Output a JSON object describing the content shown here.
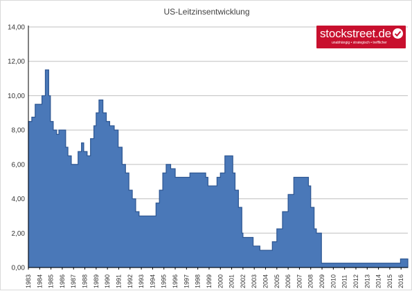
{
  "chart_data": {
    "type": "area",
    "title": "US-Leitzinsentwicklung",
    "xlabel": "",
    "ylabel": "",
    "ylim": [
      0,
      14
    ],
    "xlim": [
      1983.0,
      2016.6
    ],
    "grid": "horizontal",
    "legend": "none",
    "y_ticks": [
      "0,00",
      "2,00",
      "4,00",
      "6,00",
      "8,00",
      "10,00",
      "12,00",
      "14,00"
    ],
    "x_ticks": [
      "1983",
      "1984",
      "1985",
      "1986",
      "1987",
      "1988",
      "1989",
      "1990",
      "1991",
      "1992",
      "1993",
      "1994",
      "1995",
      "1996",
      "1997",
      "1998",
      "1999",
      "2000",
      "2001",
      "2002",
      "2003",
      "2004",
      "2005",
      "2006",
      "2007",
      "2008",
      "2009",
      "2010",
      "2011",
      "2012",
      "2013",
      "2014",
      "2015",
      "2016"
    ],
    "series": [
      {
        "values": [
          [
            1983.0,
            8.5
          ],
          [
            1983.3,
            8.75
          ],
          [
            1983.6,
            9.5
          ],
          [
            1983.9,
            9.5
          ],
          [
            1984.2,
            10.0
          ],
          [
            1984.5,
            11.5
          ],
          [
            1984.8,
            10.0
          ],
          [
            1984.95,
            8.5
          ],
          [
            1985.2,
            8.0
          ],
          [
            1985.5,
            7.75
          ],
          [
            1985.7,
            8.0
          ],
          [
            1985.95,
            8.0
          ],
          [
            1986.3,
            7.0
          ],
          [
            1986.5,
            6.5
          ],
          [
            1986.8,
            6.0
          ],
          [
            1987.1,
            6.0
          ],
          [
            1987.4,
            6.75
          ],
          [
            1987.7,
            7.25
          ],
          [
            1987.9,
            6.75
          ],
          [
            1988.2,
            6.5
          ],
          [
            1988.5,
            7.5
          ],
          [
            1988.8,
            8.25
          ],
          [
            1989.0,
            9.0
          ],
          [
            1989.25,
            9.75
          ],
          [
            1989.6,
            9.0
          ],
          [
            1989.9,
            8.5
          ],
          [
            1990.2,
            8.25
          ],
          [
            1990.6,
            8.0
          ],
          [
            1990.95,
            7.0
          ],
          [
            1991.3,
            6.0
          ],
          [
            1991.6,
            5.5
          ],
          [
            1991.9,
            4.5
          ],
          [
            1992.2,
            4.0
          ],
          [
            1992.5,
            3.25
          ],
          [
            1992.8,
            3.0
          ],
          [
            1993.0,
            3.0
          ],
          [
            1994.0,
            3.0
          ],
          [
            1994.3,
            3.75
          ],
          [
            1994.6,
            4.5
          ],
          [
            1994.9,
            5.5
          ],
          [
            1995.2,
            6.0
          ],
          [
            1995.6,
            5.75
          ],
          [
            1996.0,
            5.25
          ],
          [
            1996.5,
            5.25
          ],
          [
            1997.0,
            5.25
          ],
          [
            1997.3,
            5.5
          ],
          [
            1998.0,
            5.5
          ],
          [
            1998.7,
            5.25
          ],
          [
            1998.9,
            4.75
          ],
          [
            1999.5,
            4.75
          ],
          [
            1999.7,
            5.25
          ],
          [
            2000.0,
            5.5
          ],
          [
            2000.4,
            6.5
          ],
          [
            2000.9,
            6.5
          ],
          [
            2001.1,
            5.5
          ],
          [
            2001.3,
            4.5
          ],
          [
            2001.6,
            3.5
          ],
          [
            2001.9,
            2.0
          ],
          [
            2002.0,
            1.75
          ],
          [
            2002.8,
            1.75
          ],
          [
            2002.9,
            1.25
          ],
          [
            2003.5,
            1.0
          ],
          [
            2004.4,
            1.0
          ],
          [
            2004.6,
            1.5
          ],
          [
            2005.0,
            2.25
          ],
          [
            2005.5,
            3.25
          ],
          [
            2006.0,
            4.25
          ],
          [
            2006.5,
            5.25
          ],
          [
            2007.6,
            5.25
          ],
          [
            2007.8,
            4.75
          ],
          [
            2008.0,
            3.5
          ],
          [
            2008.3,
            2.25
          ],
          [
            2008.5,
            2.0
          ],
          [
            2008.8,
            2.0
          ],
          [
            2008.95,
            0.25
          ],
          [
            2015.9,
            0.25
          ],
          [
            2015.95,
            0.5
          ],
          [
            2016.6,
            0.5
          ]
        ]
      }
    ],
    "colors": {
      "area_fill": "#4a78b8",
      "area_stroke": "#2c5591",
      "grid": "#bfbfbf",
      "axis": "#000000",
      "text": "#333333"
    }
  },
  "logo": {
    "name": "stockstreet.de",
    "tagline": "unabhängig • strategisch • trefflicher",
    "icon": "check-badge-icon",
    "color": "#c8102e"
  }
}
